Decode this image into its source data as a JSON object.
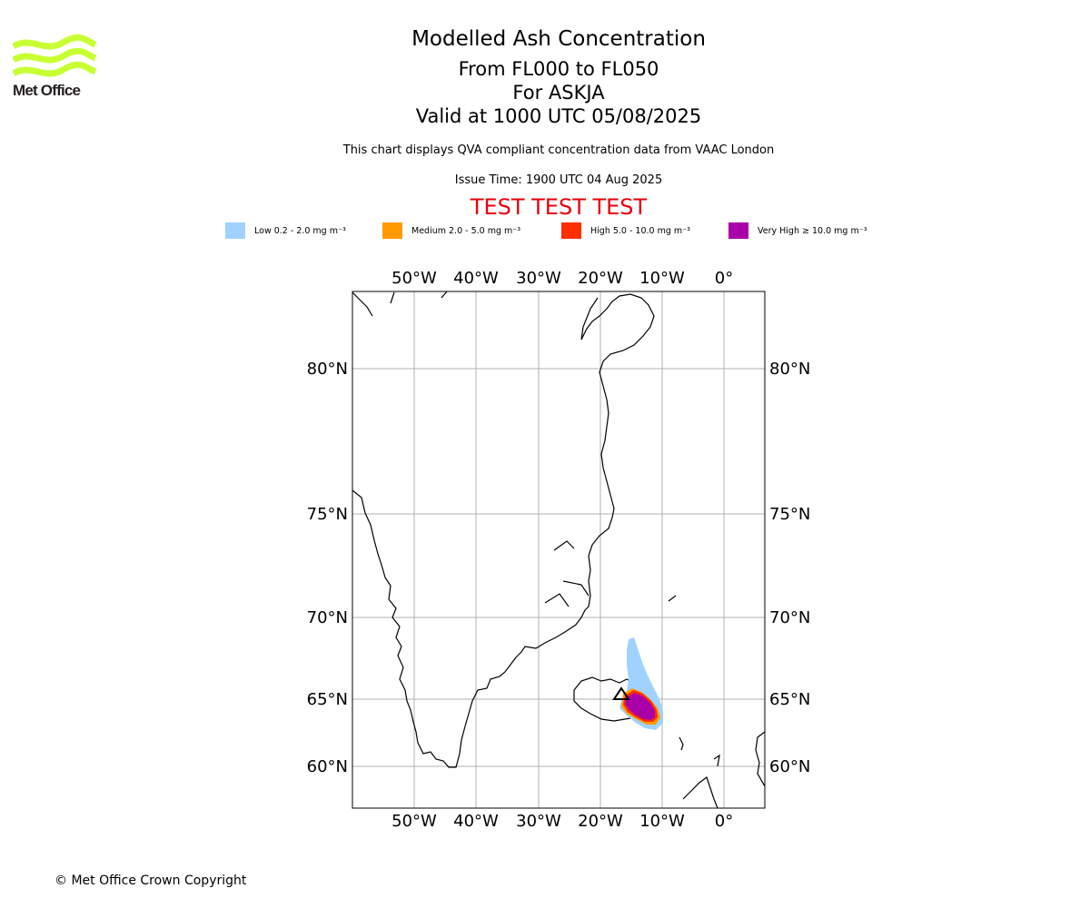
{
  "logo": {
    "text": "Met Office",
    "color": "#c8ff32"
  },
  "titles": {
    "main": "Modelled Ash Concentration",
    "levels": "From FL000 to FL050",
    "volcano": "For ASKJA",
    "valid": "Valid at 1000 UTC 05/08/2025"
  },
  "description": "This chart displays QVA compliant concentration data from VAAC London",
  "issue_time": "Issue Time: 1900 UTC 04 Aug 2025",
  "test_banner": "TEST TEST TEST",
  "legend": [
    {
      "label": "Low 0.2 - 2.0 mg m⁻³",
      "color": "#a0d2ff"
    },
    {
      "label": "Medium 2.0 - 5.0 mg m⁻³",
      "color": "#ff9a00"
    },
    {
      "label": "High 5.0 - 10.0 mg m⁻³",
      "color": "#ff2d00"
    },
    {
      "label": "Very High ≥ 10.0 mg m⁻³",
      "color": "#aa00aa"
    }
  ],
  "map": {
    "lon_ticks": [
      "50°W",
      "40°W",
      "30°W",
      "20°W",
      "10°W",
      "0°"
    ],
    "lat_ticks": [
      "80°N",
      "75°N",
      "70°N",
      "65°N",
      "60°N"
    ],
    "grid_color": "#b0b0b0"
  },
  "copyright": "© Met Office Crown Copyright"
}
